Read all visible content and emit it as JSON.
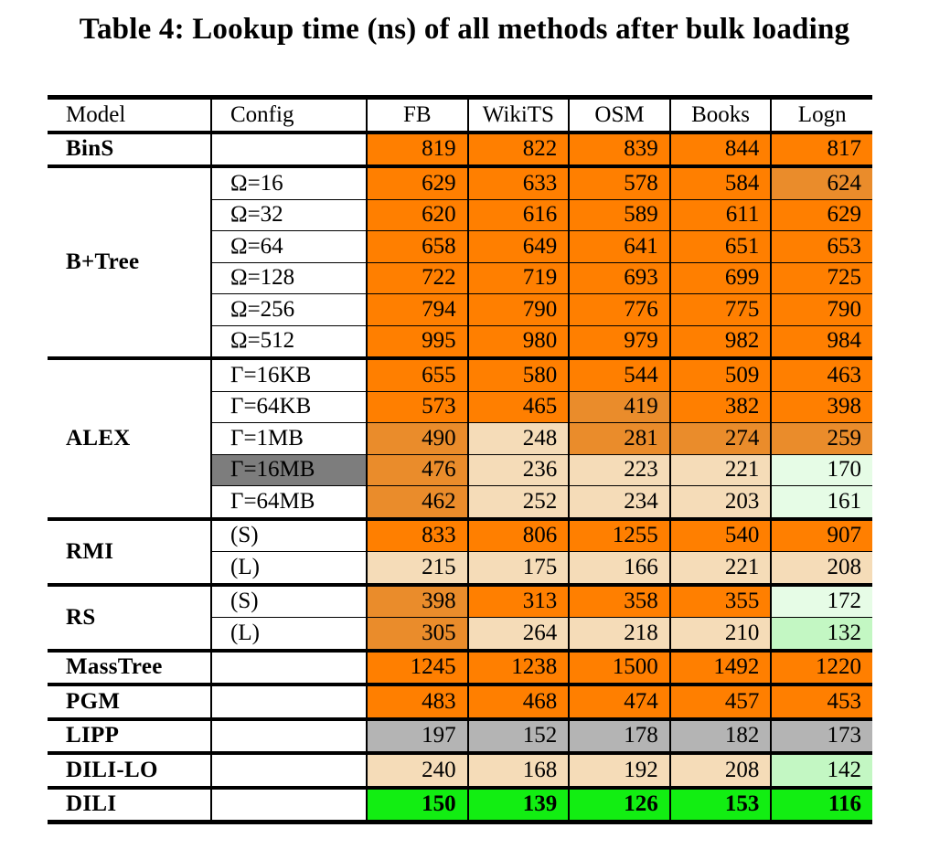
{
  "caption": "Table 4: Lookup time (ns) of all methods after bulk loading",
  "colors": {
    "orange": "#ff7f00",
    "dark_orange": "#ea8c2b",
    "peach": "#f5dcb8",
    "light_green": "#e6fce6",
    "mid_green": "#c3f7c3",
    "bright_green": "#12ee12",
    "gray": "#b4b4b4",
    "dark_gray": "#7d7d7d"
  },
  "header": [
    "Model",
    "Config",
    "FB",
    "WikiTS",
    "OSM",
    "Books",
    "Logn"
  ],
  "groups": [
    {
      "model": "BinS",
      "rows": [
        {
          "config": "",
          "values": [
            "819",
            "822",
            "839",
            "844",
            "817"
          ],
          "colors": [
            "orange",
            "orange",
            "orange",
            "orange",
            "orange"
          ]
        }
      ]
    },
    {
      "model": "B+Tree",
      "rows": [
        {
          "config": "Ω=16",
          "values": [
            "629",
            "633",
            "578",
            "584",
            "624"
          ],
          "colors": [
            "orange",
            "orange",
            "orange",
            "orange",
            "dark_orange"
          ]
        },
        {
          "config": "Ω=32",
          "values": [
            "620",
            "616",
            "589",
            "611",
            "629"
          ],
          "colors": [
            "orange",
            "orange",
            "orange",
            "orange",
            "orange"
          ]
        },
        {
          "config": "Ω=64",
          "values": [
            "658",
            "649",
            "641",
            "651",
            "653"
          ],
          "colors": [
            "orange",
            "orange",
            "orange",
            "orange",
            "orange"
          ]
        },
        {
          "config": "Ω=128",
          "values": [
            "722",
            "719",
            "693",
            "699",
            "725"
          ],
          "colors": [
            "orange",
            "orange",
            "orange",
            "orange",
            "orange"
          ]
        },
        {
          "config": "Ω=256",
          "values": [
            "794",
            "790",
            "776",
            "775",
            "790"
          ],
          "colors": [
            "orange",
            "orange",
            "orange",
            "orange",
            "orange"
          ]
        },
        {
          "config": "Ω=512",
          "values": [
            "995",
            "980",
            "979",
            "982",
            "984"
          ],
          "colors": [
            "orange",
            "orange",
            "orange",
            "orange",
            "orange"
          ]
        }
      ]
    },
    {
      "model": "ALEX",
      "rows": [
        {
          "config": "Γ=16KB",
          "values": [
            "655",
            "580",
            "544",
            "509",
            "463"
          ],
          "colors": [
            "orange",
            "orange",
            "orange",
            "orange",
            "orange"
          ]
        },
        {
          "config": "Γ=64KB",
          "values": [
            "573",
            "465",
            "419",
            "382",
            "398"
          ],
          "colors": [
            "orange",
            "orange",
            "dark_orange",
            "orange",
            "orange"
          ]
        },
        {
          "config": "Γ=1MB",
          "values": [
            "490",
            "248",
            "281",
            "274",
            "259"
          ],
          "colors": [
            "dark_orange",
            "peach",
            "dark_orange",
            "dark_orange",
            "dark_orange"
          ]
        },
        {
          "config": "Γ=16MB",
          "config_bg": "dark_gray",
          "values": [
            "476",
            "236",
            "223",
            "221",
            "170"
          ],
          "colors": [
            "dark_orange",
            "peach",
            "peach",
            "peach",
            "light_green"
          ]
        },
        {
          "config": "Γ=64MB",
          "values": [
            "462",
            "252",
            "234",
            "203",
            "161"
          ],
          "colors": [
            "dark_orange",
            "peach",
            "peach",
            "peach",
            "light_green"
          ]
        }
      ]
    },
    {
      "model": "RMI",
      "rows": [
        {
          "config": "(S)",
          "values": [
            "833",
            "806",
            "1255",
            "540",
            "907"
          ],
          "colors": [
            "orange",
            "orange",
            "orange",
            "orange",
            "orange"
          ]
        },
        {
          "config": "(L)",
          "values": [
            "215",
            "175",
            "166",
            "221",
            "208"
          ],
          "colors": [
            "peach",
            "peach",
            "peach",
            "peach",
            "peach"
          ]
        }
      ]
    },
    {
      "model": "RS",
      "rows": [
        {
          "config": "(S)",
          "values": [
            "398",
            "313",
            "358",
            "355",
            "172"
          ],
          "colors": [
            "dark_orange",
            "orange",
            "orange",
            "orange",
            "light_green"
          ]
        },
        {
          "config": "(L)",
          "values": [
            "305",
            "264",
            "218",
            "210",
            "132"
          ],
          "colors": [
            "dark_orange",
            "peach",
            "peach",
            "peach",
            "mid_green"
          ]
        }
      ]
    },
    {
      "model": "MassTree",
      "rows": [
        {
          "config": "",
          "values": [
            "1245",
            "1238",
            "1500",
            "1492",
            "1220"
          ],
          "colors": [
            "orange",
            "orange",
            "orange",
            "orange",
            "orange"
          ]
        }
      ]
    },
    {
      "model": "PGM",
      "rows": [
        {
          "config": "",
          "values": [
            "483",
            "468",
            "474",
            "457",
            "453"
          ],
          "colors": [
            "orange",
            "orange",
            "orange",
            "orange",
            "orange"
          ]
        }
      ]
    },
    {
      "model": "LIPP",
      "rows": [
        {
          "config": "",
          "values": [
            "197",
            "152",
            "178",
            "182",
            "173"
          ],
          "colors": [
            "gray",
            "gray",
            "gray",
            "gray",
            "gray"
          ]
        }
      ]
    },
    {
      "model": "DILI-LO",
      "rows": [
        {
          "config": "",
          "values": [
            "240",
            "168",
            "192",
            "208",
            "142"
          ],
          "colors": [
            "peach",
            "peach",
            "peach",
            "peach",
            "mid_green"
          ]
        }
      ]
    },
    {
      "model": "DILI",
      "bold": true,
      "rows": [
        {
          "config": "",
          "values": [
            "150",
            "139",
            "126",
            "153",
            "116"
          ],
          "colors": [
            "bright_green",
            "bright_green",
            "bright_green",
            "bright_green",
            "bright_green"
          ]
        }
      ]
    }
  ]
}
